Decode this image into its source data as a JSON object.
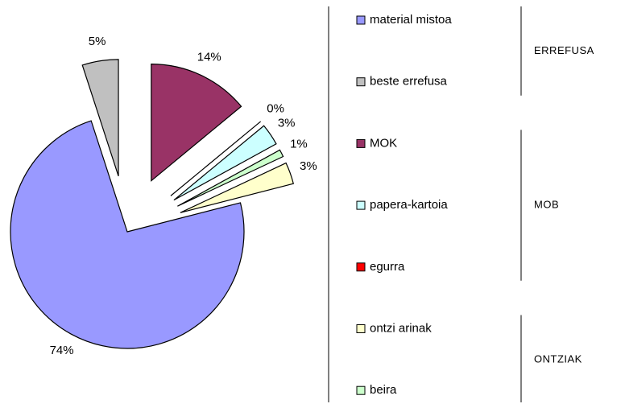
{
  "chart_data": {
    "type": "pie",
    "categories": [
      "MOK",
      "egurra",
      "papera-kartoia",
      "beira",
      "ontzi arinak",
      "material mistoa",
      "beste errefusa"
    ],
    "values": [
      14,
      0,
      3,
      1,
      3,
      74,
      5
    ],
    "value_labels": [
      "14%",
      "0%",
      "3%",
      "1%",
      "3%",
      "74%",
      "5%"
    ],
    "colors": [
      "#993366",
      "#ff0000",
      "#ccffff",
      "#ccffcc",
      "#ffffcc",
      "#9999ff",
      "#c0c0c0"
    ],
    "legend": [
      {
        "group": "ERREFUSA",
        "items": [
          "material mistoa",
          "beste errefusa"
        ]
      },
      {
        "group": "MOB",
        "items": [
          "MOK",
          "papera-kartoia",
          "egurra"
        ]
      },
      {
        "group": "ONTZIAK",
        "items": [
          "ontzi arinak",
          "beira"
        ]
      }
    ]
  }
}
